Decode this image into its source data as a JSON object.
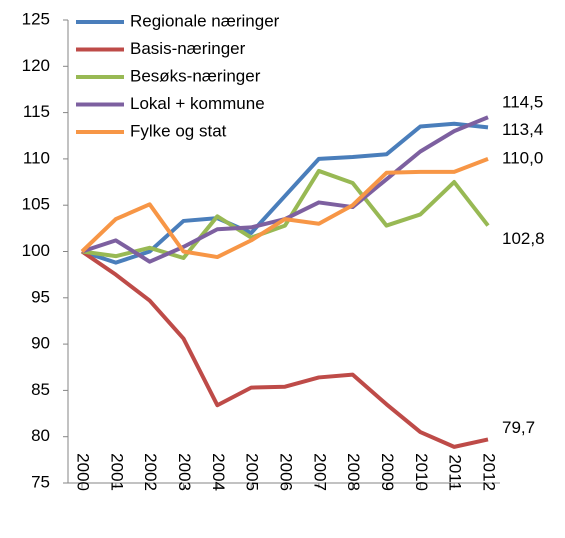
{
  "chart_data": {
    "type": "line",
    "categories": [
      "2000",
      "2001",
      "2002",
      "2003",
      "2004",
      "2005",
      "2006",
      "2007",
      "2008",
      "2009",
      "2010",
      "2011",
      "2012"
    ],
    "ylim": [
      75,
      125
    ],
    "yticks": [
      75,
      80,
      85,
      90,
      95,
      100,
      105,
      110,
      115,
      120,
      125
    ],
    "grid": false,
    "legend": "top-left",
    "series": [
      {
        "name": "Regionale næringer",
        "color": "#4a7ebb",
        "values": [
          100,
          98.8,
          100,
          103.3,
          103.6,
          102,
          106,
          110,
          110.2,
          110.5,
          113.5,
          113.8,
          113.4
        ],
        "value_labels": [
          null,
          null,
          null,
          null,
          null,
          null,
          null,
          null,
          null,
          null,
          null,
          null,
          "113,4"
        ]
      },
      {
        "name": "Basis-næringer",
        "color": "#be4b48",
        "values": [
          100,
          97.5,
          94.7,
          90.6,
          83.4,
          85.3,
          85.4,
          86.4,
          86.7,
          83.5,
          80.5,
          78.9,
          79.7
        ],
        "value_labels": [
          null,
          null,
          null,
          null,
          null,
          null,
          null,
          null,
          null,
          null,
          null,
          null,
          "79,7"
        ]
      },
      {
        "name": "Besøks-næringer",
        "color": "#98b954",
        "values": [
          100,
          99.5,
          100.4,
          99.3,
          103.8,
          101.5,
          102.8,
          108.7,
          107.4,
          102.8,
          104,
          107.5,
          102.8
        ],
        "value_labels": [
          null,
          null,
          null,
          null,
          null,
          null,
          null,
          null,
          null,
          null,
          null,
          null,
          "102,8"
        ]
      },
      {
        "name": "Lokal + kommune",
        "color": "#7d60a0",
        "values": [
          100,
          101.2,
          98.9,
          100.5,
          102.4,
          102.6,
          103.5,
          105.3,
          104.8,
          107.8,
          110.8,
          113,
          114.5
        ],
        "value_labels": [
          null,
          null,
          null,
          null,
          null,
          null,
          null,
          null,
          null,
          null,
          null,
          null,
          "114,5"
        ]
      },
      {
        "name": "Fylke og stat",
        "color": "#f79646",
        "values": [
          100,
          103.5,
          105.1,
          100,
          99.4,
          101.2,
          103.5,
          103,
          105,
          108.5,
          108.6,
          108.6,
          110.0
        ],
        "value_labels": [
          null,
          null,
          null,
          null,
          null,
          null,
          null,
          null,
          null,
          null,
          null,
          null,
          "110,0"
        ]
      }
    ]
  }
}
